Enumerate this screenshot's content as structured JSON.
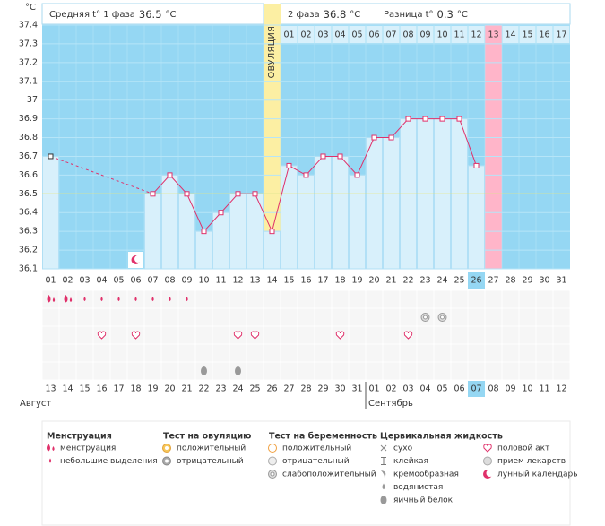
{
  "chart_data": {
    "type": "line",
    "unit": "°C",
    "phase1": {
      "label": "Средняя t° 1 фаза",
      "value": 36.5
    },
    "phase2": {
      "label": "2 фаза",
      "value": 36.8
    },
    "difference": {
      "label": "Разница t°",
      "value": 0.3
    },
    "ovulation_label": "ОВУЛЯЦИЯ",
    "ovulation_day": 14,
    "next_cycle_day": 27,
    "selected_day": 26,
    "coverline": 36.5,
    "categories": [
      "01",
      "02",
      "03",
      "04",
      "05",
      "06",
      "07",
      "08",
      "09",
      "10",
      "11",
      "12",
      "13",
      "14",
      "15",
      "16",
      "17",
      "18",
      "19",
      "20",
      "21",
      "22",
      "23",
      "24",
      "25",
      "26",
      "27",
      "28",
      "29",
      "30",
      "31"
    ],
    "values": [
      36.7,
      null,
      null,
      null,
      null,
      null,
      36.5,
      36.6,
      36.5,
      36.3,
      36.4,
      36.5,
      36.5,
      36.3,
      36.65,
      36.6,
      36.7,
      36.7,
      36.6,
      36.8,
      36.8,
      36.9,
      36.9,
      36.9,
      36.9,
      36.65,
      null,
      null,
      null,
      null,
      null
    ],
    "phase2_days": [
      "01",
      "02",
      "03",
      "04",
      "05",
      "06",
      "07",
      "08",
      "09",
      "10",
      "11",
      "12",
      "13",
      "14",
      "15",
      "16",
      "17"
    ],
    "ylim": [
      36.1,
      37.4
    ],
    "yticks": [
      36.1,
      36.2,
      36.3,
      36.4,
      36.5,
      36.6,
      36.7,
      36.8,
      36.9,
      37,
      37.1,
      37.2,
      37.3,
      37.4
    ],
    "dates": [
      {
        "label": "13",
        "weekend": false
      },
      {
        "label": "14",
        "weekend": false
      },
      {
        "label": "15",
        "weekend": false
      },
      {
        "label": "16",
        "weekend": false
      },
      {
        "label": "17",
        "weekend": true
      },
      {
        "label": "18",
        "weekend": true
      },
      {
        "label": "19",
        "weekend": false
      },
      {
        "label": "20",
        "weekend": false
      },
      {
        "label": "21",
        "weekend": false
      },
      {
        "label": "22",
        "weekend": false
      },
      {
        "label": "23",
        "weekend": false
      },
      {
        "label": "24",
        "weekend": true
      },
      {
        "label": "25",
        "weekend": true
      },
      {
        "label": "26",
        "weekend": false
      },
      {
        "label": "27",
        "weekend": false
      },
      {
        "label": "28",
        "weekend": false
      },
      {
        "label": "29",
        "weekend": false
      },
      {
        "label": "30",
        "weekend": false
      },
      {
        "label": "31",
        "weekend": true
      },
      {
        "label": "01",
        "weekend": true
      },
      {
        "label": "02",
        "weekend": false
      },
      {
        "label": "03",
        "weekend": false
      },
      {
        "label": "04",
        "weekend": false
      },
      {
        "label": "05",
        "weekend": false
      },
      {
        "label": "06",
        "weekend": false
      },
      {
        "label": "07",
        "weekend": true
      },
      {
        "label": "08",
        "weekend": true
      },
      {
        "label": "09",
        "weekend": false
      },
      {
        "label": "10",
        "weekend": false
      },
      {
        "label": "11",
        "weekend": false
      },
      {
        "label": "12",
        "weekend": false
      }
    ],
    "months": [
      {
        "label": "Август",
        "from": 1
      },
      {
        "label": "Сентябрь",
        "from": 20
      }
    ],
    "legend": [
      {
        "title": "Менструация",
        "items": [
          {
            "label": "менструация",
            "days": [
              1,
              2
            ]
          },
          {
            "label": "небольшие выделения",
            "days": [
              3,
              4,
              5,
              6,
              7,
              8,
              9
            ]
          }
        ]
      },
      {
        "title": "Тест на овуляцию",
        "items": [
          {
            "label": "положительный",
            "days": []
          },
          {
            "label": "отрицательный",
            "days": []
          }
        ]
      },
      {
        "title": "Тест на беременность",
        "items": [
          {
            "label": "положительный",
            "days": []
          },
          {
            "label": "отрицательный",
            "days": []
          },
          {
            "label": "слабоположительный",
            "days": [
              23,
              24
            ]
          }
        ]
      },
      {
        "title": "Цервикальная жидкость",
        "items": [
          {
            "label": "сухо",
            "days": []
          },
          {
            "label": "клейкая",
            "days": []
          },
          {
            "label": "кремообразная",
            "days": []
          },
          {
            "label": "водянистая",
            "days": []
          },
          {
            "label": "яичный белок",
            "days": [
              10,
              12
            ]
          }
        ]
      },
      {
        "items": [
          {
            "label": "половой акт",
            "days": [
              4,
              6,
              12,
              13,
              18,
              22
            ]
          },
          {
            "label": "прием лекарств",
            "days": []
          },
          {
            "label": "лунный календарь",
            "days": [
              6
            ]
          }
        ]
      }
    ]
  }
}
